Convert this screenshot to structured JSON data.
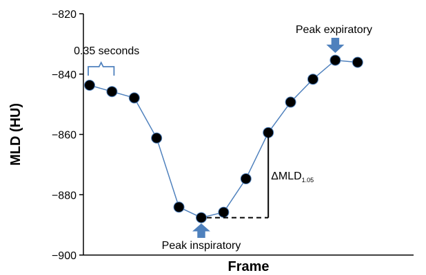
{
  "chart_data": {
    "type": "line",
    "title": "",
    "xlabel": "Frame",
    "ylabel": "MLD (HU)",
    "ylim": [
      -900,
      -820
    ],
    "yticks": [
      -820,
      -840,
      -860,
      -880,
      -900
    ],
    "ytick_labels": [
      "−820",
      "−840",
      "−860",
      "−880",
      "−900"
    ],
    "grid": false,
    "legend": "none",
    "x": [
      1,
      2,
      3,
      4,
      5,
      6,
      7,
      8,
      9,
      10,
      11,
      12,
      13
    ],
    "y": [
      -843.7,
      -845.8,
      -847.9,
      -861.2,
      -884.1,
      -887.6,
      -885.8,
      -874.7,
      -859.4,
      -849.3,
      -841.7,
      -835.4,
      -836.1
    ],
    "line_color": "#4f81bd",
    "marker_color": "#000000",
    "arrow_color": "#4f81bd",
    "annotations": {
      "interval": {
        "text": "0.35 seconds",
        "from_x": 1,
        "to_x": 2
      },
      "peak_inspiratory": {
        "text": "Peak inspiratory",
        "x": 6
      },
      "peak_expiratory": {
        "text": "Peak expiratory",
        "x": 12
      },
      "delta": {
        "main": "ΔMLD",
        "sub": "1.05",
        "from_x": 6,
        "to_x": 9
      }
    }
  }
}
